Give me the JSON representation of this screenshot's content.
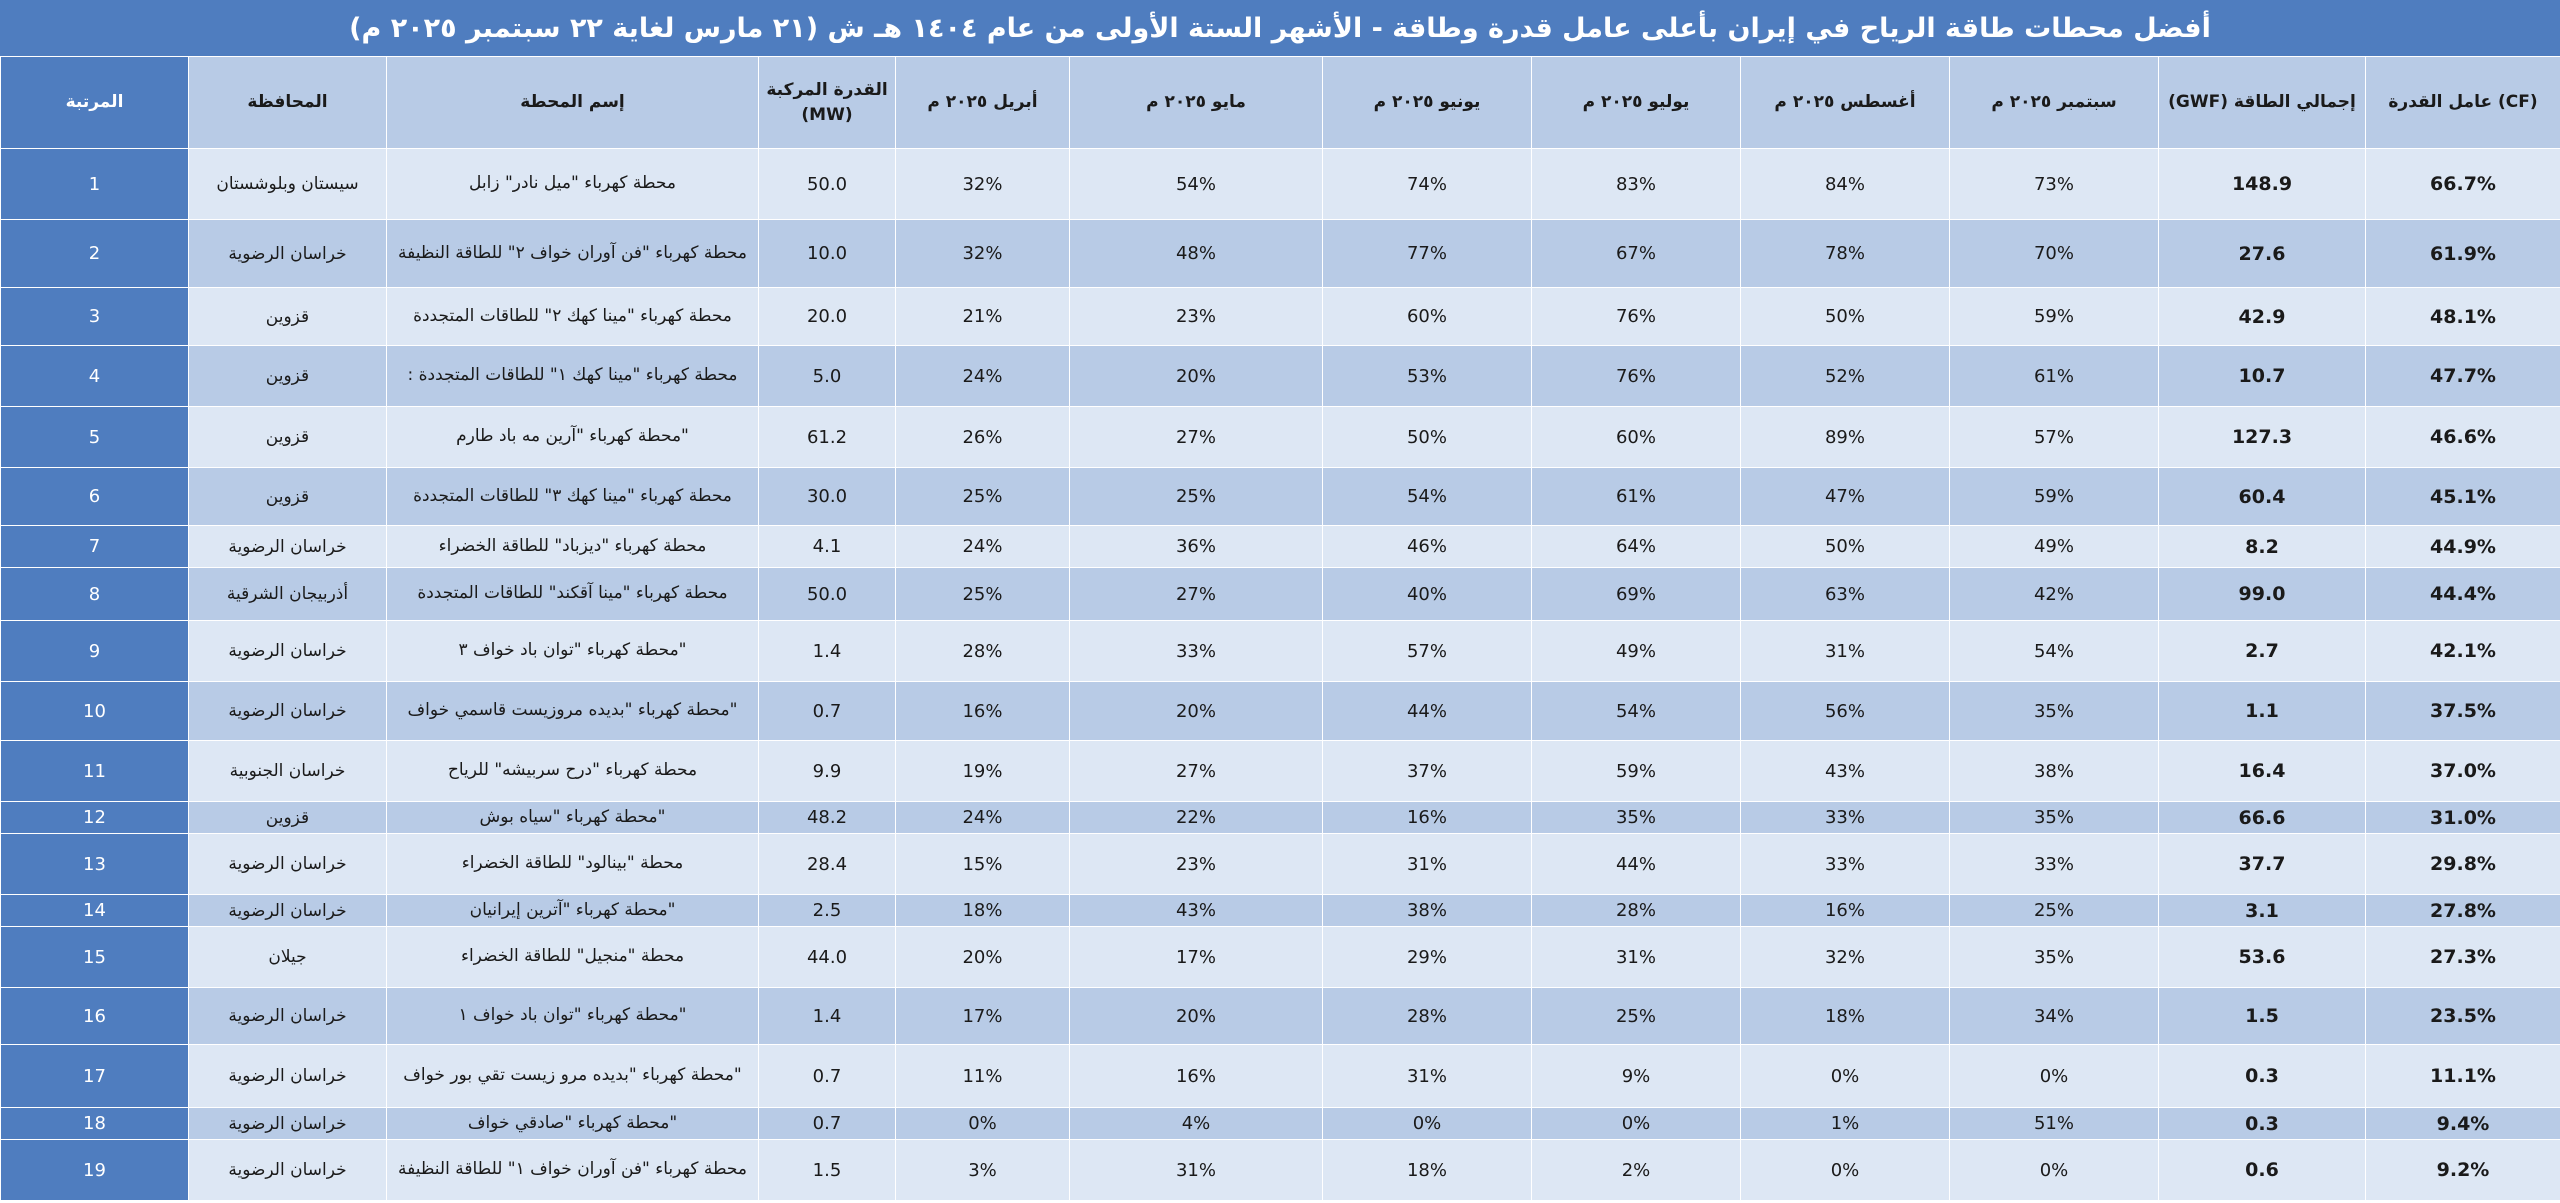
{
  "title": "أفضل محطات طاقة الرياح في إيران بأعلى عامل قدرة وطاقة -  الأشهر الستة الأولى من عام ١٤٠٤ هـ ش (٢١ مارس لغاية ٢٢ سبتمبر ٢٠٢٥ م)",
  "headers": {
    "rank": "المرتبة",
    "province": "المحافظة",
    "station": "إسم المحطة",
    "capacity": "القدرة المركبة (MW)",
    "apr": "أبريل ٢٠٢٥ م",
    "may": "مايو ٢٠٢٥ م",
    "jun": "يونيو ٢٠٢٥ م",
    "jul": "يوليو ٢٠٢٥ م",
    "aug": "أغسطس ٢٠٢٥ م",
    "sep": "سبتمبر ٢٠٢٥ م",
    "energy": "(GWF) إجمالي الطاقة",
    "cf": "عامل القدرة (CF)"
  },
  "rows": [
    {
      "rank": "1",
      "province": "سيستان وبلوشستان",
      "station": "محطة كهرباء \"ميل نادر\" زابل",
      "capacity": "50.0",
      "apr": "32%",
      "may": "54%",
      "jun": "74%",
      "jul": "83%",
      "aug": "84%",
      "sep": "73%",
      "energy": "148.9",
      "cf": "66.7%"
    },
    {
      "rank": "2",
      "province": "خراسان الرضوية",
      "station": "محطة كهرباء \"فن آوران خواف ٢\" للطاقة النظيفة",
      "capacity": "10.0",
      "apr": "32%",
      "may": "48%",
      "jun": "77%",
      "jul": "67%",
      "aug": "78%",
      "sep": "70%",
      "energy": "27.6",
      "cf": "61.9%"
    },
    {
      "rank": "3",
      "province": "قزوين",
      "station": "محطة كهرباء \"مينا كهك ٢\" للطاقات المتجددة",
      "capacity": "20.0",
      "apr": "21%",
      "may": "23%",
      "jun": "60%",
      "jul": "76%",
      "aug": "50%",
      "sep": "59%",
      "energy": "42.9",
      "cf": "48.1%"
    },
    {
      "rank": "4",
      "province": "قزوين",
      "station": "محطة كهرباء \"مينا كهك ١\" للطاقات المتجددة :",
      "capacity": "5.0",
      "apr": "24%",
      "may": "20%",
      "jun": "53%",
      "jul": "76%",
      "aug": "52%",
      "sep": "61%",
      "energy": "10.7",
      "cf": "47.7%"
    },
    {
      "rank": "5",
      "province": "قزوين",
      "station": "\"محطة كهرباء \"آرين مه باد طارم",
      "capacity": "61.2",
      "apr": "26%",
      "may": "27%",
      "jun": "50%",
      "jul": "60%",
      "aug": "89%",
      "sep": "57%",
      "energy": "127.3",
      "cf": "46.6%"
    },
    {
      "rank": "6",
      "province": "قزوين",
      "station": "محطة كهرباء \"مينا كهك ٣\" للطاقات المتجددة",
      "capacity": "30.0",
      "apr": "25%",
      "may": "25%",
      "jun": "54%",
      "jul": "61%",
      "aug": "47%",
      "sep": "59%",
      "energy": "60.4",
      "cf": "45.1%"
    },
    {
      "rank": "7",
      "province": "خراسان الرضوية",
      "station": "محطة كهرباء \"ديزباد\" للطاقة الخضراء",
      "capacity": "4.1",
      "apr": "24%",
      "may": "36%",
      "jun": "46%",
      "jul": "64%",
      "aug": "50%",
      "sep": "49%",
      "energy": "8.2",
      "cf": "44.9%"
    },
    {
      "rank": "8",
      "province": "أذربيجان الشرقية",
      "station": "محطة كهرباء \"مينا آقكند\" للطاقات المتجددة",
      "capacity": "50.0",
      "apr": "25%",
      "may": "27%",
      "jun": "40%",
      "jul": "69%",
      "aug": "63%",
      "sep": "42%",
      "energy": "99.0",
      "cf": "44.4%"
    },
    {
      "rank": "9",
      "province": "خراسان الرضوية",
      "station": "\"محطة كهرباء \"توان باد خواف ٣",
      "capacity": "1.4",
      "apr": "28%",
      "may": "33%",
      "jun": "57%",
      "jul": "49%",
      "aug": "31%",
      "sep": "54%",
      "energy": "2.7",
      "cf": "42.1%"
    },
    {
      "rank": "10",
      "province": "خراسان الرضوية",
      "station": "\"محطة كهرباء \"بديده مروزيست قاسمي خواف",
      "capacity": "0.7",
      "apr": "16%",
      "may": "20%",
      "jun": "44%",
      "jul": "54%",
      "aug": "56%",
      "sep": "35%",
      "energy": "1.1",
      "cf": "37.5%"
    },
    {
      "rank": "11",
      "province": "خراسان الجنوبية",
      "station": "محطة كهرباء \"درح سربيشه\" للرياح",
      "capacity": "9.9",
      "apr": "19%",
      "may": "27%",
      "jun": "37%",
      "jul": "59%",
      "aug": "43%",
      "sep": "38%",
      "energy": "16.4",
      "cf": "37.0%"
    },
    {
      "rank": "12",
      "province": "قزوين",
      "station": "\"محطة كهرباء \"سياه بوش",
      "capacity": "48.2",
      "apr": "24%",
      "may": "22%",
      "jun": "16%",
      "jul": "35%",
      "aug": "33%",
      "sep": "35%",
      "energy": "66.6",
      "cf": "31.0%"
    },
    {
      "rank": "13",
      "province": "خراسان الرضوية",
      "station": "محطة \"بينالود\" للطاقة الخضراء",
      "capacity": "28.4",
      "apr": "15%",
      "may": "23%",
      "jun": "31%",
      "jul": "44%",
      "aug": "33%",
      "sep": "33%",
      "energy": "37.7",
      "cf": "29.8%"
    },
    {
      "rank": "14",
      "province": "خراسان الرضوية",
      "station": "\"محطة كهرباء \"آترين إيرانيان",
      "capacity": "2.5",
      "apr": "18%",
      "may": "43%",
      "jun": "38%",
      "jul": "28%",
      "aug": "16%",
      "sep": "25%",
      "energy": "3.1",
      "cf": "27.8%"
    },
    {
      "rank": "15",
      "province": "جيلان",
      "station": "محطة \"منجيل\" للطاقة الخضراء",
      "capacity": "44.0",
      "apr": "20%",
      "may": "17%",
      "jun": "29%",
      "jul": "31%",
      "aug": "32%",
      "sep": "35%",
      "energy": "53.6",
      "cf": "27.3%"
    },
    {
      "rank": "16",
      "province": "خراسان الرضوية",
      "station": "\"محطة كهرباء \"توان باد خواف ١",
      "capacity": "1.4",
      "apr": "17%",
      "may": "20%",
      "jun": "28%",
      "jul": "25%",
      "aug": "18%",
      "sep": "34%",
      "energy": "1.5",
      "cf": "23.5%"
    },
    {
      "rank": "17",
      "province": "خراسان الرضوية",
      "station": "\"محطة كهرباء \"بديده مرو زيست تقي بور خواف",
      "capacity": "0.7",
      "apr": "11%",
      "may": "16%",
      "jun": "31%",
      "jul": "9%",
      "aug": "0%",
      "sep": "0%",
      "energy": "0.3",
      "cf": "11.1%"
    },
    {
      "rank": "18",
      "province": "خراسان الرضوية",
      "station": "\"محطة كهرباء \"صادقي خواف",
      "capacity": "0.7",
      "apr": "0%",
      "may": "4%",
      "jun": "0%",
      "jul": "0%",
      "aug": "1%",
      "sep": "51%",
      "energy": "0.3",
      "cf": "9.4%"
    },
    {
      "rank": "19",
      "province": "خراسان الرضوية",
      "station": "محطة كهرباء \"فن آوران خواف ١\" للطاقة النظيفة",
      "capacity": "1.5",
      "apr": "3%",
      "may": "31%",
      "jun": "18%",
      "jul": "2%",
      "aug": "0%",
      "sep": "0%",
      "energy": "0.6",
      "cf": "9.2%"
    }
  ]
}
